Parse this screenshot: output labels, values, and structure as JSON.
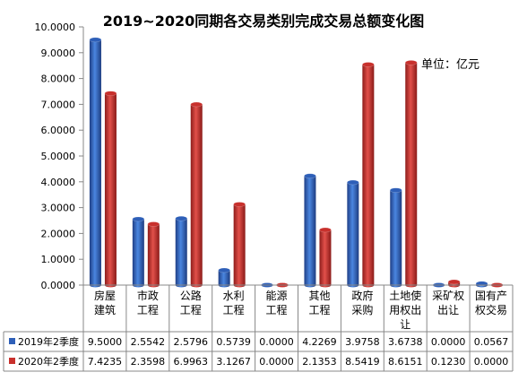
{
  "chart_data": {
    "type": "bar",
    "title": "2019~2020同期各交易类别完成交易总额变化图",
    "unit_label": "单位：亿元",
    "categories": [
      [
        "房屋",
        "建筑"
      ],
      [
        "市政",
        "工程"
      ],
      [
        "公路",
        "工程"
      ],
      [
        "水利",
        "工程"
      ],
      [
        "能源",
        "工程"
      ],
      [
        "其他",
        "工程"
      ],
      [
        "政府",
        "采购"
      ],
      [
        "土地使",
        "用权出",
        "让"
      ],
      [
        "采矿权",
        "出让"
      ],
      [
        "国有产",
        "权交易"
      ]
    ],
    "series": [
      {
        "name": "2019年2季度",
        "color": "#2e5fb8",
        "values": [
          "9.5000",
          "2.5542",
          "2.5796",
          "0.5739",
          "0.0000",
          "4.2269",
          "3.9758",
          "3.6738",
          "0.0000",
          "0.0567"
        ]
      },
      {
        "name": "2020年2季度",
        "color": "#c8302c",
        "values": [
          "7.4235",
          "2.3598",
          "6.9963",
          "3.1267",
          "0.0000",
          "2.1353",
          "8.5419",
          "8.6151",
          "0.1230",
          "0.0000"
        ]
      }
    ],
    "ylim": [
      0,
      10
    ],
    "yticks": [
      "0.0000",
      "1.0000",
      "2.0000",
      "3.0000",
      "4.0000",
      "5.0000",
      "6.0000",
      "7.0000",
      "8.0000",
      "9.0000",
      "10.0000"
    ],
    "grid": false,
    "legend": "table-bottom"
  }
}
